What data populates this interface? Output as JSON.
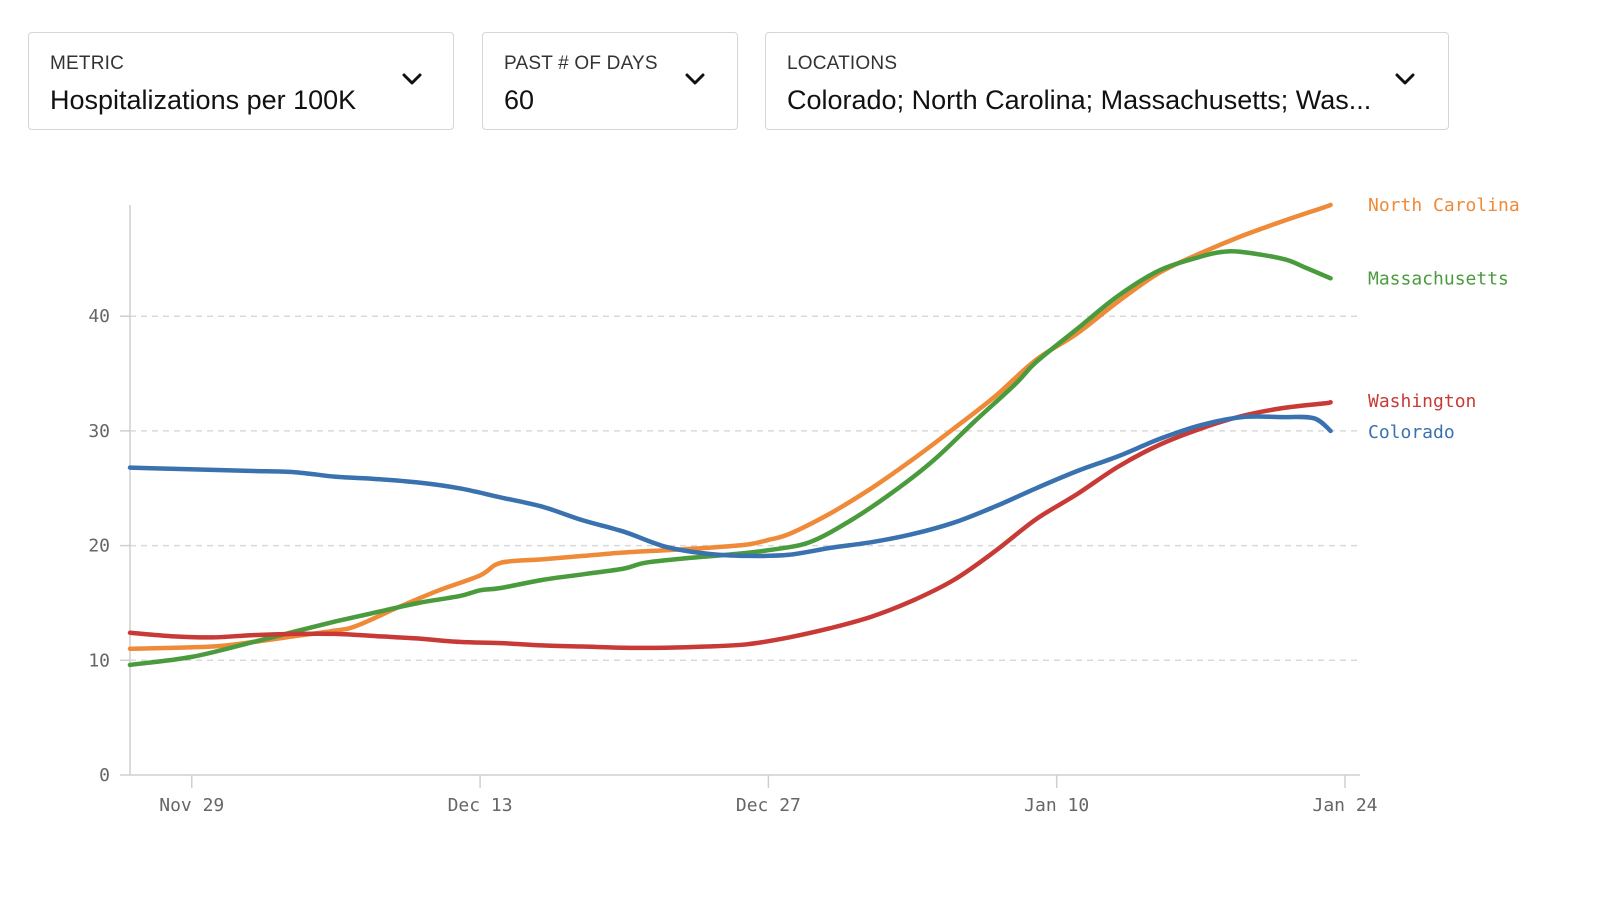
{
  "controls": {
    "metric": {
      "label": "METRIC",
      "value": "Hospitalizations per 100K"
    },
    "days": {
      "label": "PAST # OF DAYS",
      "value": "60"
    },
    "locations": {
      "label": "LOCATIONS",
      "value": "Colorado; North Carolina; Massachusetts; Was..."
    }
  },
  "chart_data": {
    "type": "line",
    "title": "",
    "xlabel": "",
    "ylabel": "",
    "ylim": [
      0,
      50
    ],
    "xlim": [
      0,
      59
    ],
    "y_ticks": [
      0,
      10,
      20,
      30,
      40
    ],
    "x_ticks": [
      {
        "day": 3,
        "label": "Nov 29"
      },
      {
        "day": 17,
        "label": "Dec 13"
      },
      {
        "day": 31,
        "label": "Dec 27"
      },
      {
        "day": 45,
        "label": "Jan 10"
      },
      {
        "day": 59,
        "label": "Jan 24"
      }
    ],
    "grid": true,
    "legend": "inline-right",
    "series": [
      {
        "name": "North Carolina",
        "color": "#ef8a38",
        "points": [
          [
            0,
            11.0
          ],
          [
            4,
            11.2
          ],
          [
            6,
            11.6
          ],
          [
            8,
            12.1
          ],
          [
            10,
            12.6
          ],
          [
            11,
            13.0
          ],
          [
            13,
            14.6
          ],
          [
            15,
            16.1
          ],
          [
            17,
            17.4
          ],
          [
            18,
            18.5
          ],
          [
            20,
            18.8
          ],
          [
            22,
            19.1
          ],
          [
            24,
            19.4
          ],
          [
            26,
            19.6
          ],
          [
            28,
            19.8
          ],
          [
            30,
            20.1
          ],
          [
            31,
            20.5
          ],
          [
            32,
            21.0
          ],
          [
            34,
            22.8
          ],
          [
            36,
            25.0
          ],
          [
            38,
            27.5
          ],
          [
            40,
            30.2
          ],
          [
            42,
            33.0
          ],
          [
            44,
            36.2
          ],
          [
            46,
            38.5
          ],
          [
            48,
            41.3
          ],
          [
            50,
            43.8
          ],
          [
            52,
            45.5
          ],
          [
            54,
            47.0
          ],
          [
            56,
            48.3
          ],
          [
            58,
            49.5
          ],
          [
            58.3,
            49.7
          ]
        ]
      },
      {
        "name": "Massachusetts",
        "color": "#4a9b3d",
        "points": [
          [
            0,
            9.6
          ],
          [
            3,
            10.3
          ],
          [
            6,
            11.6
          ],
          [
            8,
            12.5
          ],
          [
            10,
            13.4
          ],
          [
            12,
            14.2
          ],
          [
            14,
            15.0
          ],
          [
            16,
            15.6
          ],
          [
            17,
            16.1
          ],
          [
            18,
            16.3
          ],
          [
            20,
            17.0
          ],
          [
            22,
            17.5
          ],
          [
            24,
            18.0
          ],
          [
            25,
            18.5
          ],
          [
            27,
            18.9
          ],
          [
            29,
            19.2
          ],
          [
            31,
            19.6
          ],
          [
            33,
            20.3
          ],
          [
            35,
            22.2
          ],
          [
            37,
            24.6
          ],
          [
            39,
            27.4
          ],
          [
            41,
            30.8
          ],
          [
            43,
            34.1
          ],
          [
            44,
            36.0
          ],
          [
            46,
            38.9
          ],
          [
            48,
            41.8
          ],
          [
            50,
            44.0
          ],
          [
            52,
            45.2
          ],
          [
            53,
            45.6
          ],
          [
            54,
            45.6
          ],
          [
            56,
            45.0
          ],
          [
            57,
            44.3
          ],
          [
            58.3,
            43.3
          ]
        ]
      },
      {
        "name": "Washington",
        "color": "#c83a35",
        "points": [
          [
            0,
            12.4
          ],
          [
            2,
            12.1
          ],
          [
            4,
            12.0
          ],
          [
            6,
            12.2
          ],
          [
            8,
            12.3
          ],
          [
            10,
            12.3
          ],
          [
            12,
            12.1
          ],
          [
            14,
            11.9
          ],
          [
            16,
            11.6
          ],
          [
            18,
            11.5
          ],
          [
            20,
            11.3
          ],
          [
            22,
            11.2
          ],
          [
            24,
            11.1
          ],
          [
            26,
            11.1
          ],
          [
            28,
            11.2
          ],
          [
            30,
            11.4
          ],
          [
            32,
            12.0
          ],
          [
            34,
            12.8
          ],
          [
            36,
            13.8
          ],
          [
            38,
            15.2
          ],
          [
            40,
            17.0
          ],
          [
            42,
            19.5
          ],
          [
            44,
            22.3
          ],
          [
            46,
            24.5
          ],
          [
            48,
            26.9
          ],
          [
            50,
            28.8
          ],
          [
            52,
            30.2
          ],
          [
            54,
            31.3
          ],
          [
            56,
            32.0
          ],
          [
            58,
            32.4
          ],
          [
            58.3,
            32.5
          ]
        ]
      },
      {
        "name": "Colorado",
        "color": "#3a72b0",
        "points": [
          [
            0,
            26.8
          ],
          [
            2,
            26.7
          ],
          [
            4,
            26.6
          ],
          [
            6,
            26.5
          ],
          [
            8,
            26.4
          ],
          [
            10,
            26.0
          ],
          [
            12,
            25.8
          ],
          [
            14,
            25.5
          ],
          [
            16,
            25.0
          ],
          [
            18,
            24.2
          ],
          [
            20,
            23.4
          ],
          [
            22,
            22.2
          ],
          [
            24,
            21.2
          ],
          [
            26,
            19.9
          ],
          [
            28,
            19.3
          ],
          [
            30,
            19.1
          ],
          [
            32,
            19.2
          ],
          [
            34,
            19.8
          ],
          [
            36,
            20.3
          ],
          [
            38,
            21.0
          ],
          [
            40,
            22.0
          ],
          [
            42,
            23.4
          ],
          [
            44,
            25.0
          ],
          [
            46,
            26.5
          ],
          [
            48,
            27.8
          ],
          [
            50,
            29.3
          ],
          [
            52,
            30.5
          ],
          [
            54,
            31.2
          ],
          [
            56,
            31.2
          ],
          [
            57.5,
            31.1
          ],
          [
            58.3,
            30.0
          ]
        ]
      }
    ]
  }
}
